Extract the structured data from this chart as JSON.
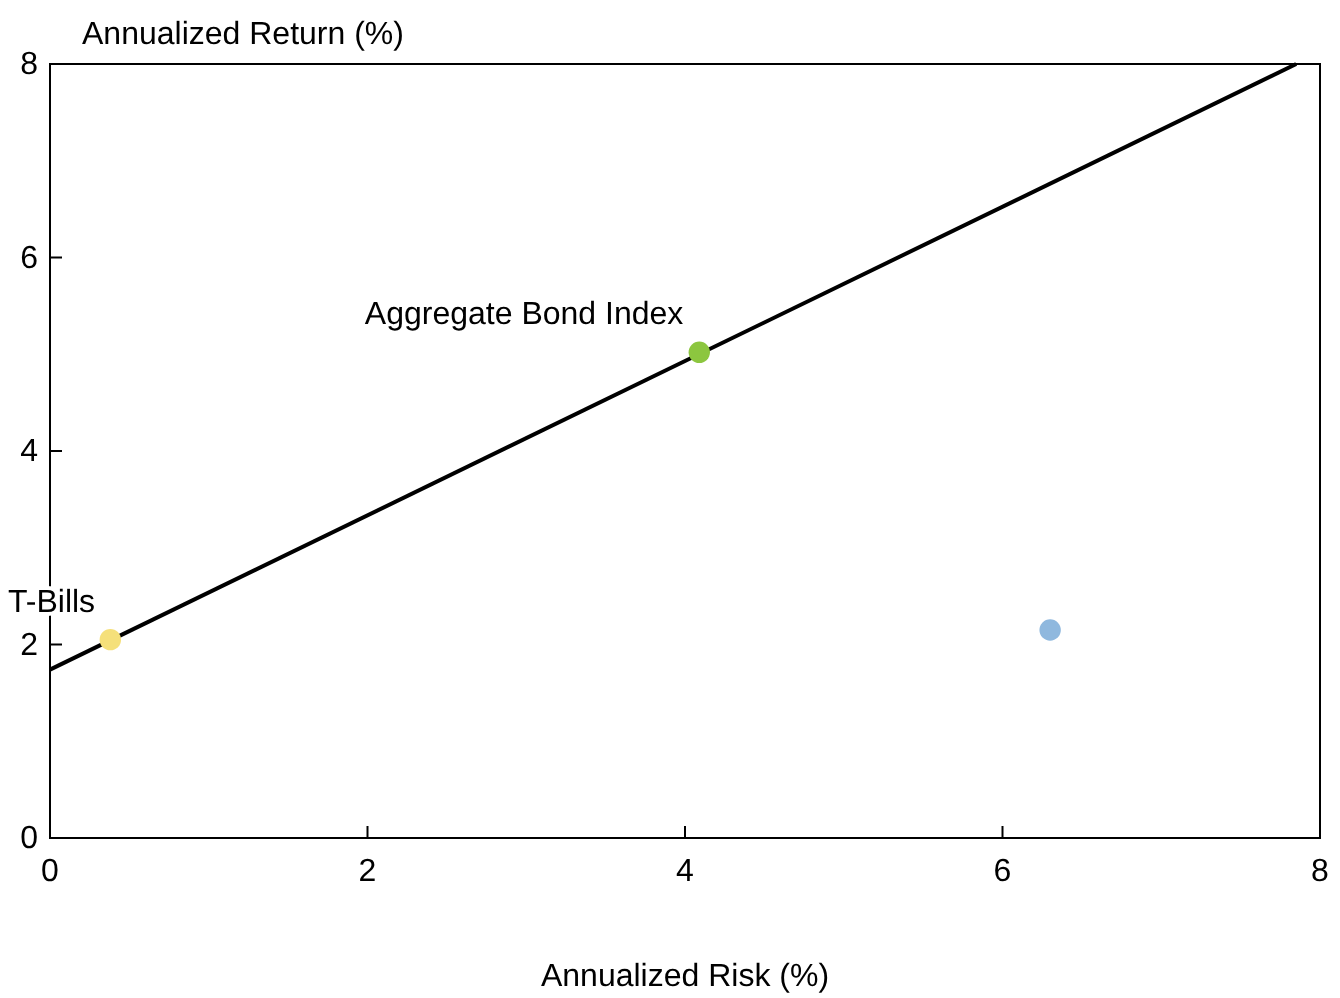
{
  "chart_data": {
    "type": "scatter",
    "xlabel": "Annualized Risk (%)",
    "ylabel": "Annualized Return (%)",
    "xlim": [
      0,
      8
    ],
    "ylim": [
      0,
      8
    ],
    "xticks": [
      0,
      2,
      4,
      6,
      8
    ],
    "yticks": [
      0,
      2,
      4,
      6,
      8
    ],
    "grid": false,
    "marker": "circle",
    "series": [
      {
        "type": "line",
        "marker": "none",
        "color": "#000000",
        "x": [
          0,
          7.85
        ],
        "values": [
          1.74,
          8
        ]
      },
      {
        "x": [
          0.38,
          4.09,
          6.3
        ],
        "values": [
          2.05,
          5.02,
          2.15
        ],
        "colors": [
          "#f5e07a",
          "#8cc63f",
          "#8fb8de"
        ]
      }
    ],
    "annotations": [
      {
        "text": "T-Bills",
        "x": 0.38,
        "y": 2.05
      },
      {
        "text": "Aggregate Bond Index",
        "x": 4.09,
        "y": 5.02
      }
    ]
  }
}
